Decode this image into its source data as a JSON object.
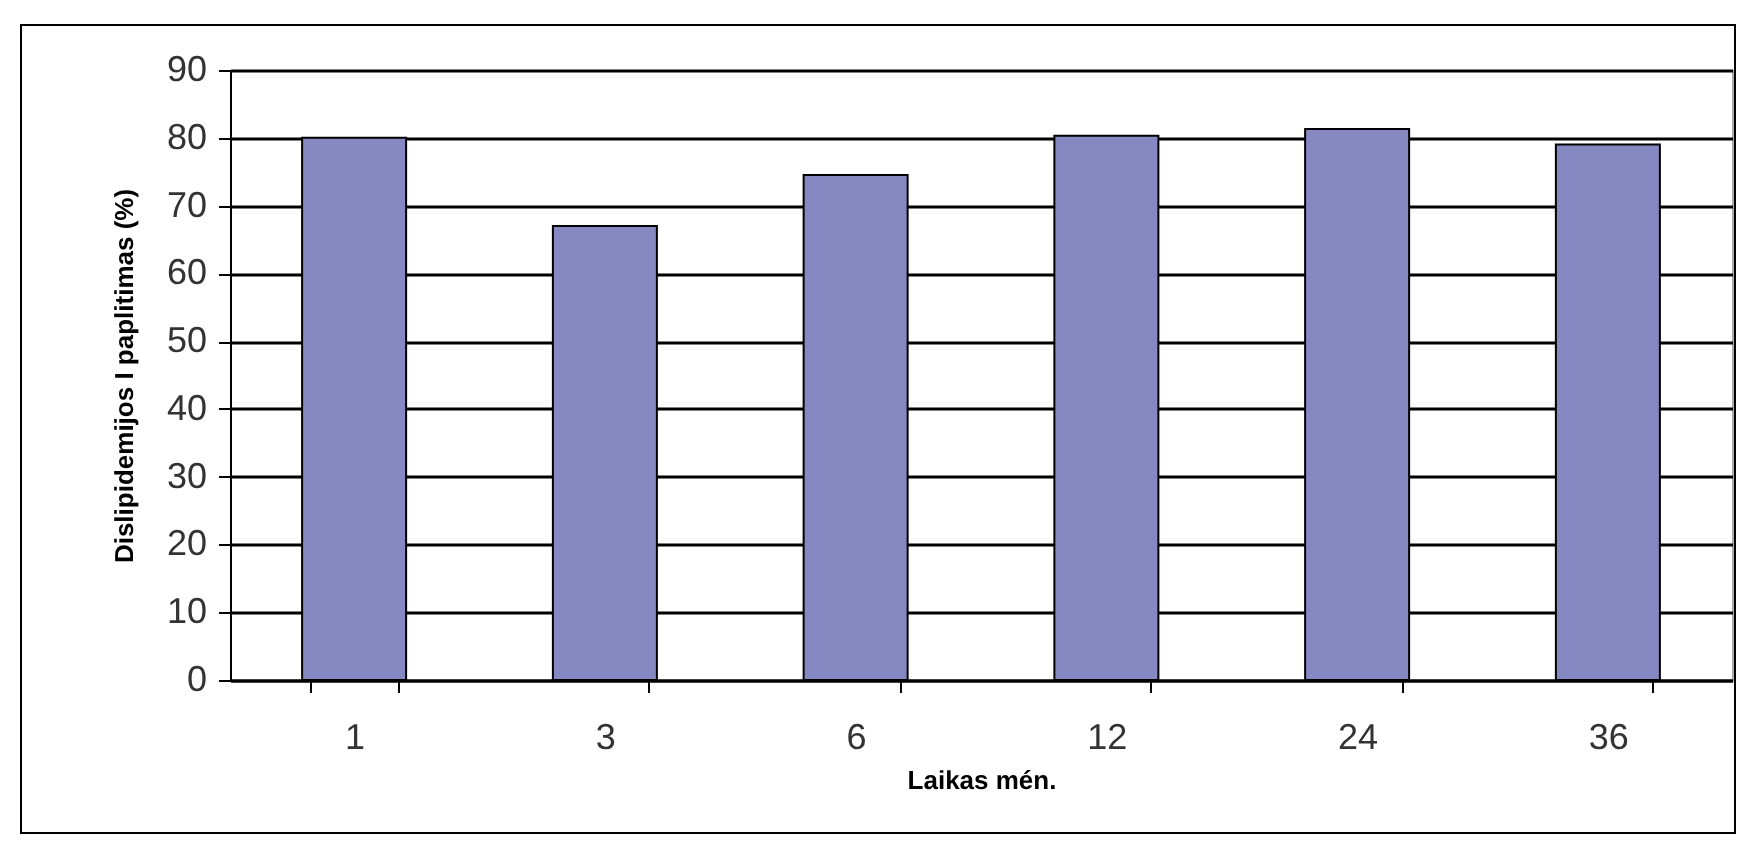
{
  "chart_data": {
    "type": "bar",
    "xlabel": "Laikas mén.",
    "ylabel": "Dislipidemijos I paplitimas (%)",
    "categories": [
      "1",
      "3",
      "6",
      "12",
      "24",
      "36"
    ],
    "values": [
      80,
      67,
      74.5,
      80.3,
      81.3,
      79
    ],
    "color": "#8689c1",
    "ylim": [
      0,
      90
    ],
    "yticks": [
      0,
      10,
      20,
      30,
      40,
      50,
      60,
      70,
      80,
      90
    ],
    "grid": "y"
  }
}
